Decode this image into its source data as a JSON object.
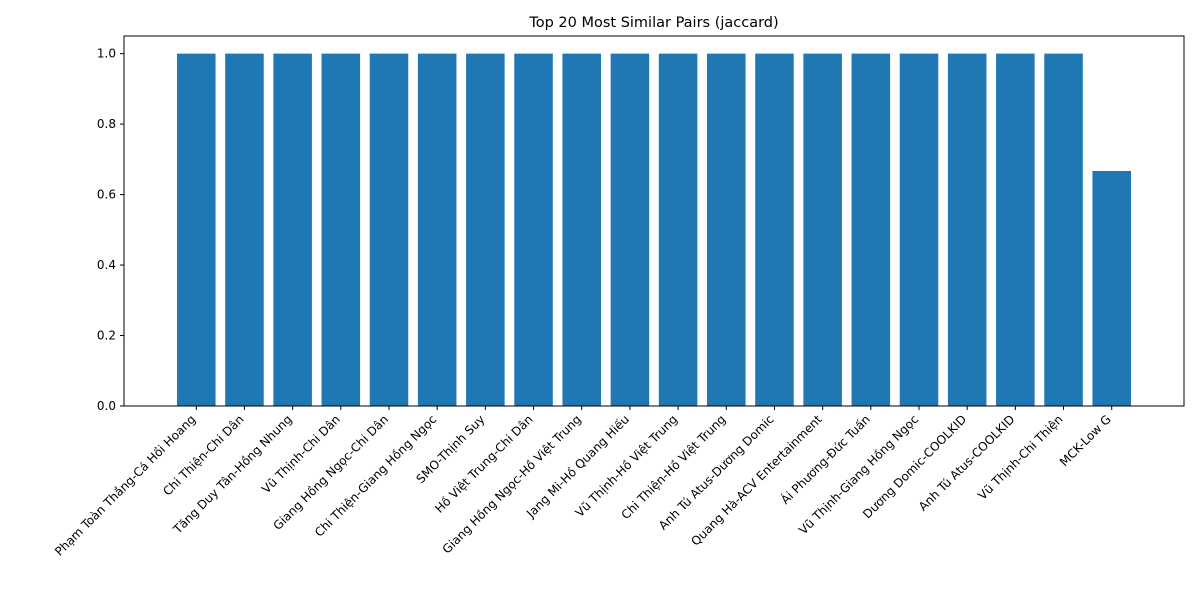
{
  "chart_data": {
    "type": "bar",
    "title": "Top 20 Most Similar Pairs (jaccard)",
    "xlabel": "",
    "ylabel": "",
    "ylim": [
      0,
      1.05
    ],
    "yticks": [
      "0.0",
      "0.2",
      "0.4",
      "0.6",
      "0.8",
      "1.0"
    ],
    "bar_color": "#1f77b4",
    "categories": [
      "Phạm Toàn Thắng-Cá Hồi Hoang",
      "Chi Thiện-Chi Dân",
      "Tăng Duy Tân-Hồng Nhung",
      "Vũ Thịnh-Chi Dân",
      "Giang Hồng Ngọc-Chi Dân",
      "Chi Thiện-Giang Hồng Ngọc",
      "SMO-Thịnh Suy",
      "Hồ Việt Trung-Chi Dân",
      "Giang Hồng Ngọc-Hồ Việt Trung",
      "Jang Mi-Hồ Quang Hiếu",
      "Vũ Thịnh-Hồ Việt Trung",
      "Chi Thiện-Hồ Việt Trung",
      "Anh Tú Atus-Dương Domic",
      "Quang Hà-ACV Entertainment",
      "Ái Phương-Đức Tuấn",
      "Vũ Thịnh-Giang Hồng Ngọc",
      "Dương Domic-COOLKID",
      "Anh Tú Atus-COOLKID",
      "Vũ Thịnh-Chi Thiện",
      "MCK-Low G"
    ],
    "values": [
      1,
      1,
      1,
      1,
      1,
      1,
      1,
      1,
      1,
      1,
      1,
      1,
      1,
      1,
      1,
      1,
      1,
      1,
      1,
      0.667
    ]
  }
}
